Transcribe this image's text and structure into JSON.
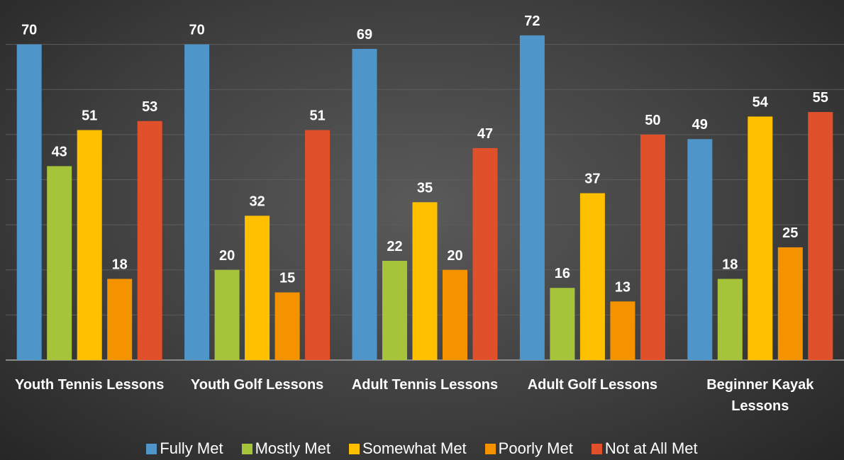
{
  "chart_data": {
    "type": "bar",
    "categories": [
      "Youth Tennis Lessons",
      "Youth Golf Lessons",
      "Adult Tennis Lessons",
      "Adult Golf Lessons",
      "Beginner Kayak Lessons"
    ],
    "series": [
      {
        "name": "Fully Met",
        "color": "#4e95c9",
        "values": [
          70,
          70,
          69,
          72,
          49
        ]
      },
      {
        "name": "Mostly Met",
        "color": "#a6c43a",
        "values": [
          43,
          20,
          22,
          16,
          18
        ]
      },
      {
        "name": "Somewhat Met",
        "color": "#ffc000",
        "values": [
          51,
          32,
          35,
          37,
          54
        ]
      },
      {
        "name": "Poorly Met",
        "color": "#f59200",
        "values": [
          18,
          15,
          20,
          13,
          25
        ]
      },
      {
        "name": "Not at All Met",
        "color": "#e0502a",
        "values": [
          53,
          51,
          47,
          50,
          55
        ]
      }
    ],
    "ylim": [
      0,
      80
    ],
    "yticks": [
      0,
      10,
      20,
      30,
      40,
      50,
      60,
      70
    ],
    "grid": true
  }
}
